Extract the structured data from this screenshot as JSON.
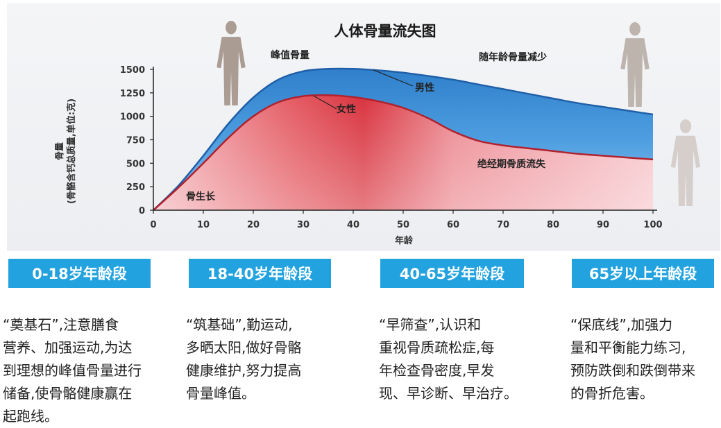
{
  "chart_data": {
    "type": "area",
    "title": "人体骨量流失图",
    "xlabel": "年龄",
    "ylabel": "骨量",
    "ylabel_sub": "(骨骼含钙总质量,单位:克)",
    "xlim": [
      0,
      100
    ],
    "ylim": [
      0,
      1500
    ],
    "x_ticks": [
      0,
      10,
      20,
      30,
      40,
      50,
      60,
      70,
      80,
      90,
      100
    ],
    "y_ticks": [
      0,
      250,
      500,
      750,
      1000,
      1250,
      1500
    ],
    "series": [
      {
        "name": "男性",
        "color": "#3d8fd6",
        "x": [
          0,
          5,
          10,
          15,
          20,
          25,
          30,
          35,
          40,
          45,
          50,
          55,
          60,
          65,
          70,
          75,
          80,
          85,
          90,
          95,
          100
        ],
        "y": [
          0,
          260,
          580,
          920,
          1200,
          1390,
          1480,
          1505,
          1505,
          1490,
          1465,
          1430,
          1390,
          1340,
          1290,
          1240,
          1190,
          1140,
          1100,
          1060,
          1020
        ]
      },
      {
        "name": "女性",
        "color": "#d9515d",
        "x": [
          0,
          5,
          10,
          15,
          20,
          25,
          30,
          35,
          40,
          45,
          50,
          55,
          60,
          65,
          70,
          75,
          80,
          85,
          90,
          95,
          100
        ],
        "y": [
          0,
          240,
          500,
          770,
          1000,
          1150,
          1215,
          1225,
          1205,
          1160,
          1090,
          980,
          840,
          740,
          690,
          660,
          630,
          600,
          580,
          560,
          540
        ]
      }
    ],
    "annotations": {
      "peak": "峰值骨量",
      "decline": "随年龄骨量减少",
      "male": "男性",
      "female": "女性",
      "menopause": "绝经期骨质流失",
      "growth": "骨生长"
    }
  },
  "stages": [
    {
      "title": "0-18岁年龄段",
      "desc": "“奠基石”,注意膳食\n营养、加强运动,为达\n到理想的峰值骨量进行\n储备,使骨骼健康赢在\n起跑线。"
    },
    {
      "title": "18-40岁年龄段",
      "desc": "“筑基础”,勤运动,\n多晒太阳,做好骨骼\n健康维护,努力提高\n骨量峰值。"
    },
    {
      "title": "40-65岁年龄段",
      "desc": "“早筛查”,认识和\n重视骨质疏松症,每\n年检查骨密度,早发\n现、早诊断、早治疗。"
    },
    {
      "title": "65岁以上年龄段",
      "desc": "“保底线”,加强力\n量和平衡能力练习,\n预防跌倒和跌倒带来\n的骨折危害。"
    }
  ],
  "colors": {
    "accent": "#22a3df",
    "male": "#3d8fd6",
    "female": "#d9515d"
  },
  "icons": [
    "human-silhouette-icon",
    "human-silhouette-icon",
    "human-silhouette-icon",
    "human-silhouette-icon"
  ]
}
